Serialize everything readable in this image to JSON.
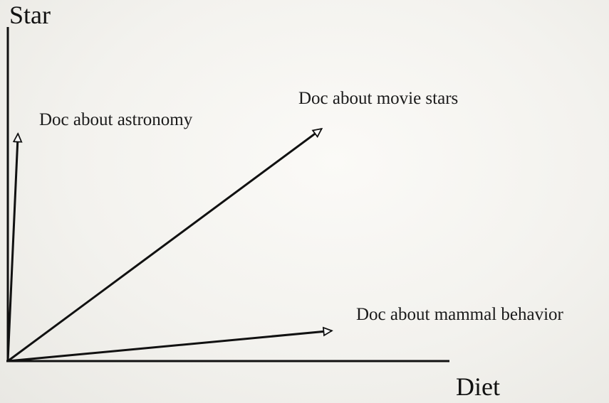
{
  "axes": {
    "y_label": "Star",
    "x_label": "Diet"
  },
  "vectors": [
    {
      "label": "Doc about astronomy",
      "x": 0.2,
      "y": 4.5
    },
    {
      "label": "Doc about movie stars",
      "x": 6.2,
      "y": 4.6
    },
    {
      "label": "Doc about mammal behavior",
      "x": 6.4,
      "y": 0.6
    }
  ]
}
